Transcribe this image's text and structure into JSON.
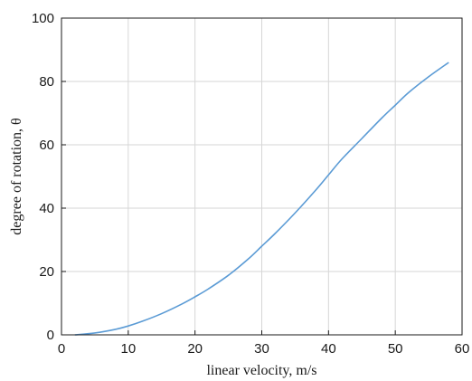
{
  "chart_data": {
    "type": "line",
    "xlabel": "linear velocity, m/s",
    "ylabel": "degree of rotation, θ",
    "xlim": [
      0,
      60
    ],
    "ylim": [
      0,
      100
    ],
    "xticks": [
      0,
      10,
      20,
      30,
      40,
      50,
      60
    ],
    "yticks": [
      0,
      20,
      40,
      60,
      80,
      100
    ],
    "grid": true,
    "series": [
      {
        "color": "#5b9bd5",
        "x": [
          2,
          5,
          8,
          10,
          12,
          15,
          18,
          20,
          22,
          25,
          28,
          30,
          32,
          35,
          38,
          40,
          42,
          45,
          48,
          50,
          52,
          55,
          58
        ],
        "y": [
          0,
          0.6,
          1.7,
          2.8,
          4.2,
          6.7,
          9.7,
          12,
          14.5,
          18.8,
          24,
          28,
          32,
          38.5,
          45.5,
          50.5,
          55.5,
          62,
          68.5,
          72.5,
          76.5,
          81.5,
          86
        ]
      }
    ]
  }
}
